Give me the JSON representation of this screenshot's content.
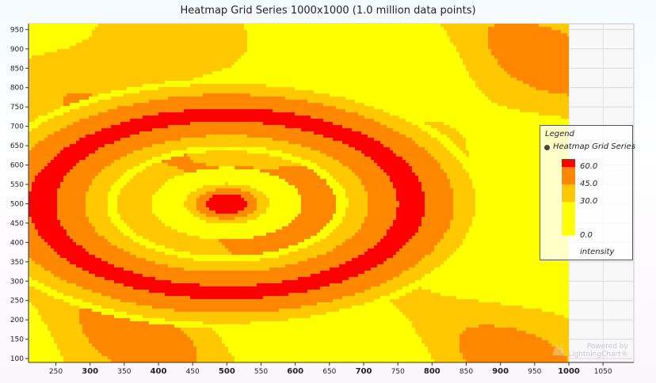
{
  "chart_data": {
    "type": "heatmap",
    "title": "Heatmap Grid Series 1000x1000 (1.0 million data points)",
    "xlabel": "",
    "ylabel": "",
    "xlim": [
      210,
      1095
    ],
    "ylim": [
      90,
      965
    ],
    "x_ticks": [
      250,
      300,
      350,
      400,
      450,
      500,
      550,
      600,
      650,
      700,
      750,
      800,
      850,
      900,
      950,
      1000,
      1050
    ],
    "y_ticks": [
      100,
      150,
      200,
      250,
      300,
      350,
      400,
      450,
      500,
      550,
      600,
      650,
      700,
      750,
      800,
      850,
      900,
      950
    ],
    "data_extent": {
      "x": [
        210,
        1000
      ],
      "y": [
        90,
        965
      ]
    },
    "color_scale": [
      {
        "value": 0.0,
        "color": "#ffff00"
      },
      {
        "value": 30.0,
        "color": "#ffc800"
      },
      {
        "value": 45.0,
        "color": "#ff8800"
      },
      {
        "value": 60.0,
        "color": "#ff0000"
      }
    ],
    "hotspot_center": [
      500,
      500
    ],
    "grid": true,
    "legend_position": "right"
  },
  "legend": {
    "title": "Legend",
    "series_name": "Heatmap Grid Series",
    "levels": [
      "60.0",
      "45.0",
      "30.0",
      "0.0"
    ],
    "unit": "intensity"
  },
  "watermark": {
    "line1": "Powered by",
    "line2": "LightningChart®"
  }
}
